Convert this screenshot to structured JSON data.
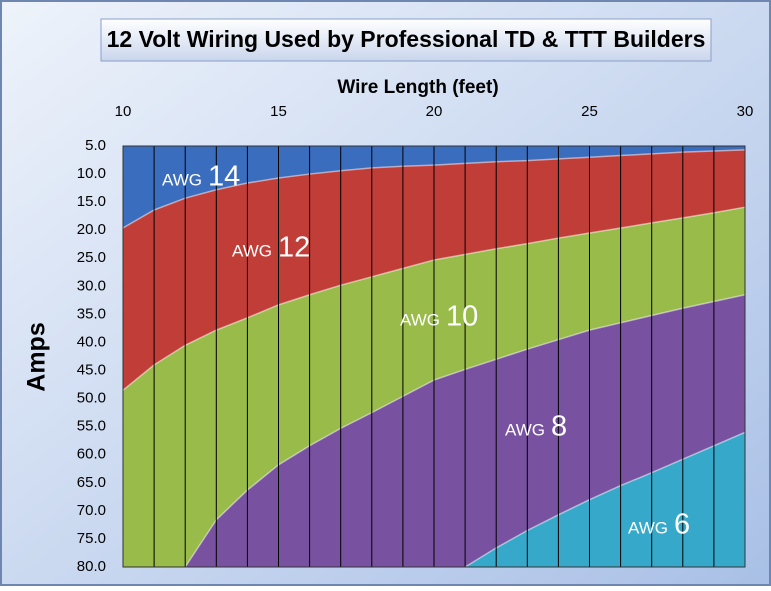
{
  "chart_data": {
    "type": "area",
    "title": "12 Volt Wiring Used by Professional TD & TTT Builders",
    "x_label": "Wire Length (feet)",
    "y_label": "Amps",
    "x": [
      10,
      11,
      12,
      13,
      14,
      15,
      16,
      17,
      18,
      19,
      20,
      21,
      22,
      23,
      24,
      25,
      26,
      27,
      28,
      29,
      30
    ],
    "xlim": [
      10,
      30
    ],
    "xticks": [
      10,
      15,
      20,
      25,
      30
    ],
    "ylim": [
      5,
      80
    ],
    "y_inverted": true,
    "yticks": [
      {
        "value": 5,
        "label": "5.0"
      },
      {
        "value": 10,
        "label": "10.0"
      },
      {
        "value": 15,
        "label": "15.0"
      },
      {
        "value": 20,
        "label": "20.0"
      },
      {
        "value": 25,
        "label": "25.0"
      },
      {
        "value": 30,
        "label": "30.0"
      },
      {
        "value": 35,
        "label": "35.0"
      },
      {
        "value": 40,
        "label": "40.0"
      },
      {
        "value": 45,
        "label": "45.0"
      },
      {
        "value": 50,
        "label": "50.0"
      },
      {
        "value": 55,
        "label": "55.0"
      },
      {
        "value": 60,
        "label": "60.0"
      },
      {
        "value": 65,
        "label": "65.0"
      },
      {
        "value": 70,
        "label": "70.0"
      },
      {
        "value": 75,
        "label": "75.0"
      },
      {
        "value": 80,
        "label": "80.0"
      }
    ],
    "grid": true,
    "top_band": {
      "label": "AWG",
      "gauge": "14",
      "color": "#3b6dbf"
    },
    "series": [
      {
        "label": "AWG",
        "gauge": "12",
        "color": "#c13d38",
        "values": [
          19.6,
          16.4,
          14.3,
          12.8,
          11.6,
          10.7,
          10.0,
          9.4,
          8.9,
          8.6,
          8.4,
          8.1,
          7.8,
          7.6,
          7.3,
          7.0,
          6.7,
          6.4,
          6.1,
          5.9,
          5.7
        ]
      },
      {
        "label": "AWG",
        "gauge": "10",
        "color": "#98bb4a",
        "values": [
          48.5,
          44,
          40.5,
          37.8,
          35.6,
          33.3,
          31.5,
          29.8,
          28.3,
          26.8,
          25.3,
          24.3,
          23.3,
          22.4,
          21.4,
          20.5,
          19.6,
          18.7,
          17.8,
          16.9,
          15.9
        ]
      },
      {
        "label": "AWG",
        "gauge": "8",
        "color": "#7852a0",
        "values": [
          null,
          null,
          80,
          71.6,
          66.3,
          61.8,
          58.4,
          55.3,
          52.5,
          49.6,
          46.7,
          44.8,
          43,
          41.2,
          39.5,
          37.8,
          36.5,
          35.2,
          33.9,
          32.7,
          31.5
        ]
      },
      {
        "label": "AWG",
        "gauge": "6",
        "color": "#36a9cb",
        "values": [
          null,
          null,
          null,
          null,
          null,
          null,
          null,
          null,
          null,
          null,
          null,
          80,
          76.6,
          73.5,
          70.7,
          68,
          65.5,
          63.2,
          60.8,
          58.4,
          56
        ]
      }
    ]
  }
}
